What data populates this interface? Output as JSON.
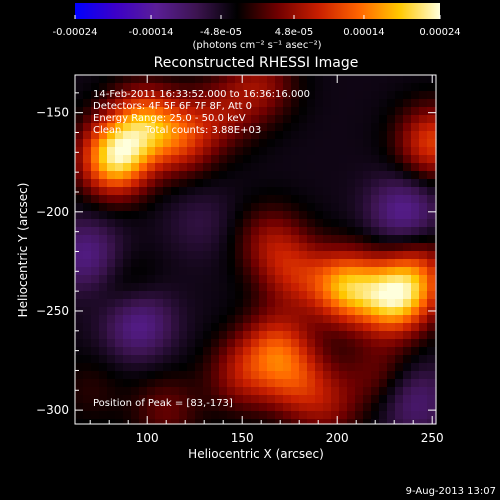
{
  "colorbar": {
    "tick_labels": [
      "-0.00024",
      "-0.00014",
      "-4.8e-05",
      "4.8e-05",
      "0.00014",
      "0.00024"
    ],
    "tick_values": [
      -0.00024,
      -0.00014,
      -4.8e-05,
      4.8e-05,
      0.00014,
      0.00024
    ],
    "range": [
      -0.00024,
      0.00024
    ],
    "unit_label": "(photons cm⁻² s⁻¹ asec⁻²)",
    "colors": [
      "#0000ff",
      "#3c00c8",
      "#5a1e96",
      "#3c1450",
      "#000000",
      "#700000",
      "#c81e00",
      "#ff6400",
      "#ffc800",
      "#ffffdc"
    ]
  },
  "chart_data": {
    "type": "heatmap",
    "title": "Reconstructed RHESSI Image",
    "xlabel": "Heliocentric X (arcsec)",
    "ylabel": "Heliocentric Y (arcsec)",
    "xlim": [
      62,
      252
    ],
    "ylim": [
      -307,
      -131
    ],
    "x_ticks": [
      100,
      150,
      200,
      250
    ],
    "y_ticks": [
      -150,
      -200,
      -250,
      -300
    ],
    "annotations": [
      "14-Feb-2011 16:33:52.000 to 16:36:16.000",
      "Detectors: 4F 5F 6F 7F 8F, Att 0",
      "Energy Range: 25.0 - 50.0 keV",
      "Clean",
      "Total counts: 3.88E+03"
    ],
    "peak_label": "Position of Peak = [83,-173]",
    "peak": [
      83,
      -173
    ],
    "sources": [
      {
        "x": 83,
        "y": -173,
        "value": 0.00024
      },
      {
        "x": 98,
        "y": -155,
        "value": 0.00016
      },
      {
        "x": 118,
        "y": -163,
        "value": 0.00012
      },
      {
        "x": 140,
        "y": -150,
        "value": 7e-05
      },
      {
        "x": 160,
        "y": -136,
        "value": 8e-05
      },
      {
        "x": 165,
        "y": -215,
        "value": 8e-05
      },
      {
        "x": 178,
        "y": -232,
        "value": 9e-05
      },
      {
        "x": 205,
        "y": -238,
        "value": 0.0002
      },
      {
        "x": 230,
        "y": -244,
        "value": 0.00021
      },
      {
        "x": 243,
        "y": -232,
        "value": 0.00012
      },
      {
        "x": 250,
        "y": -165,
        "value": 0.00014
      },
      {
        "x": 168,
        "y": -268,
        "value": 0.00012
      },
      {
        "x": 150,
        "y": -282,
        "value": 9e-05
      },
      {
        "x": 178,
        "y": -285,
        "value": 0.0001
      },
      {
        "x": 195,
        "y": -298,
        "value": 7e-05
      },
      {
        "x": 222,
        "y": -282,
        "value": 6e-05
      },
      {
        "x": 90,
        "y": -240,
        "value": 5e-05
      },
      {
        "x": 110,
        "y": -300,
        "value": 6e-05
      },
      {
        "x": 70,
        "y": -290,
        "value": 3e-05
      },
      {
        "x": 128,
        "y": -205,
        "value": -3e-05
      },
      {
        "x": 95,
        "y": -255,
        "value": -0.0001
      },
      {
        "x": 68,
        "y": -222,
        "value": -8e-05
      },
      {
        "x": 235,
        "y": -200,
        "value": -9e-05
      },
      {
        "x": 240,
        "y": -295,
        "value": -7e-05
      }
    ]
  },
  "footer": {
    "timestamp": "9-Aug-2013 13:07"
  }
}
